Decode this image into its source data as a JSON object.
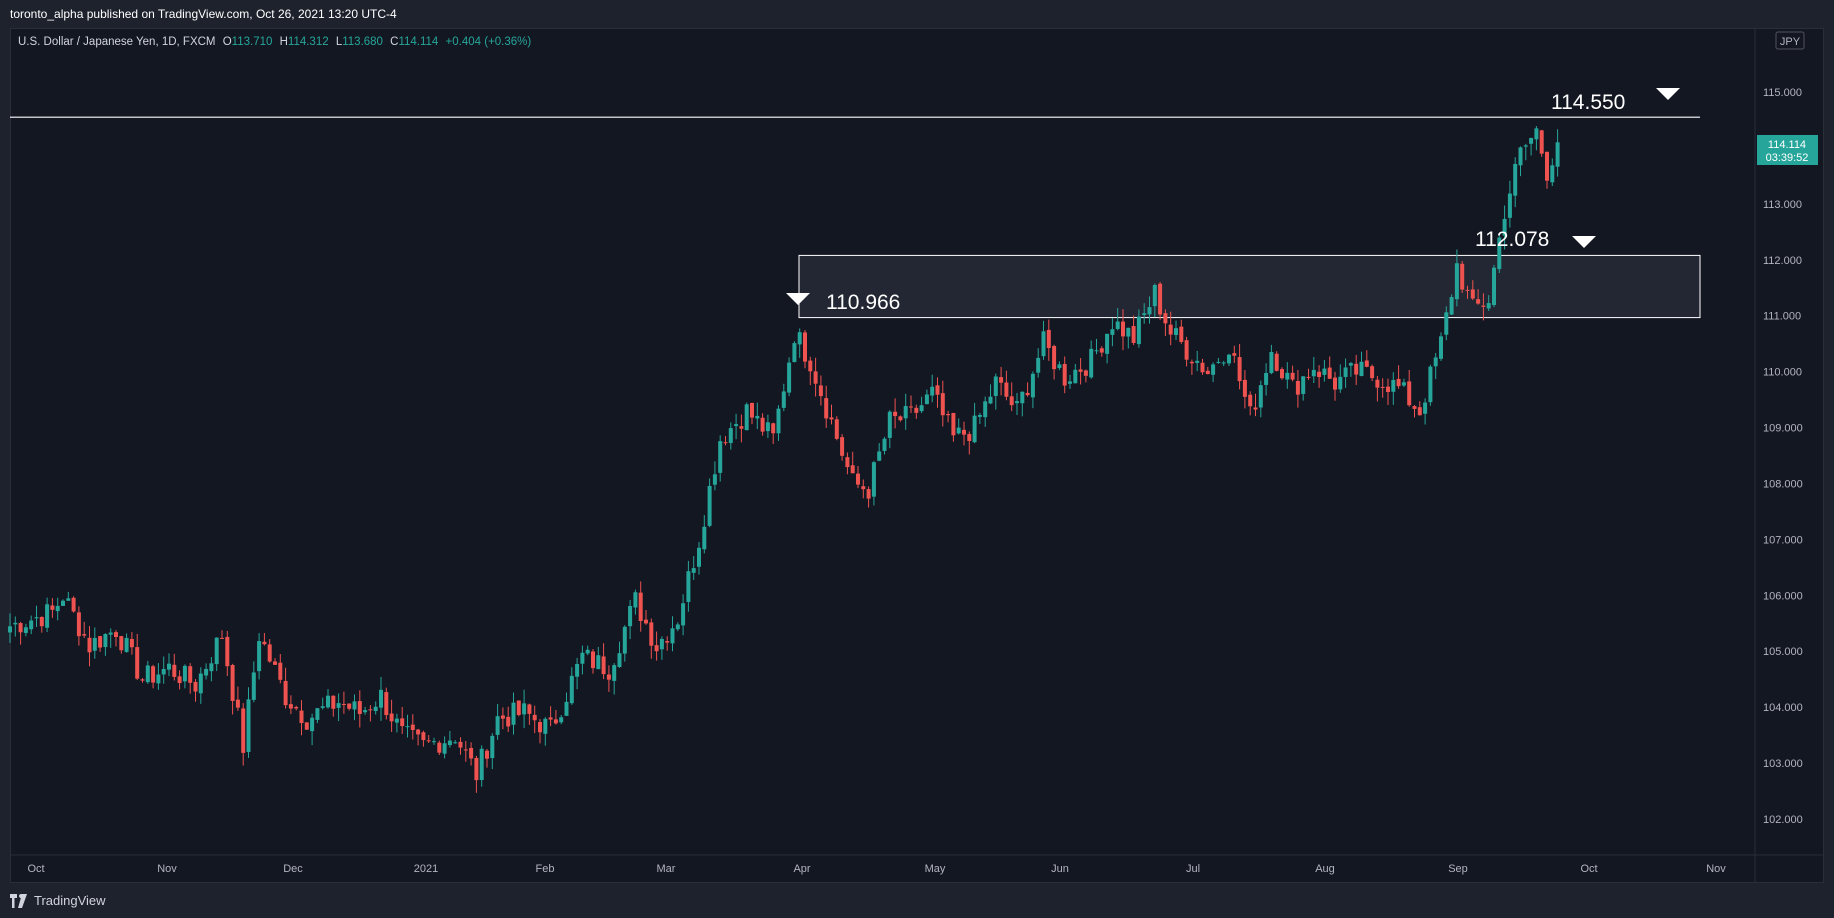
{
  "header": {
    "published_line": "toronto_alpha published on TradingView.com, Oct 26, 2021 13:20 UTC-4"
  },
  "legend": {
    "symbol": "U.S. Dollar / Japanese Yen, 1D, FXCM",
    "o_label": "O",
    "o_value": "113.710",
    "h_label": "H",
    "h_value": "114.312",
    "l_label": "L",
    "l_value": "113.680",
    "c_label": "C",
    "c_value": "114.114",
    "change": "+0.404 (+0.36%)"
  },
  "currency_badge": "JPY",
  "last_price": {
    "value": "114.114",
    "countdown": "03:39:52"
  },
  "footer": {
    "brand": "TradingView"
  },
  "colors": {
    "up": "#26a69a",
    "down": "#ef5350",
    "background": "#131722",
    "grid": "#2a2e39",
    "accent": "#26a69a"
  },
  "chart_data": {
    "type": "candlestick",
    "ylim": [
      101.5,
      115.6
    ],
    "y_ticks": [
      102,
      103,
      104,
      105,
      106,
      107,
      108,
      109,
      110,
      111,
      112,
      113,
      114,
      115
    ],
    "x_labels": [
      "Oct",
      "Nov",
      "Dec",
      "2021",
      "Feb",
      "Mar",
      "Apr",
      "May",
      "Jun",
      "Jul",
      "Aug",
      "Sep",
      "Oct",
      "Nov"
    ],
    "annotations": {
      "level_114": "114.550",
      "level_112": "112.078",
      "level_110": "110.966"
    },
    "zone": {
      "low": 110.966,
      "high": 112.078
    },
    "resistance_line": 114.55,
    "close_path": [
      [
        0,
        105.45
      ],
      [
        8,
        105.7
      ],
      [
        10,
        106.0
      ],
      [
        15,
        105.1
      ],
      [
        20,
        105.4
      ],
      [
        25,
        104.5
      ],
      [
        30,
        104.7
      ],
      [
        35,
        104.4
      ],
      [
        40,
        105.3
      ],
      [
        44,
        103.3
      ],
      [
        47,
        105.3
      ],
      [
        52,
        104.2
      ],
      [
        56,
        103.8
      ],
      [
        62,
        104.1
      ],
      [
        66,
        103.9
      ],
      [
        70,
        104.2
      ],
      [
        74,
        103.5
      ],
      [
        78,
        103.3
      ],
      [
        84,
        103.5
      ],
      [
        88,
        102.8
      ],
      [
        92,
        103.8
      ],
      [
        97,
        103.9
      ],
      [
        102,
        103.6
      ],
      [
        108,
        104.9
      ],
      [
        113,
        104.7
      ],
      [
        118,
        105.9
      ],
      [
        122,
        105.1
      ],
      [
        126,
        105.6
      ],
      [
        130,
        107.0
      ],
      [
        134,
        108.8
      ],
      [
        139,
        109.3
      ],
      [
        144,
        108.8
      ],
      [
        148,
        110.7
      ],
      [
        151,
        110.2
      ],
      [
        155,
        109.1
      ],
      [
        159,
        108.0
      ],
      [
        162,
        107.9
      ],
      [
        166,
        109.1
      ],
      [
        170,
        109.2
      ],
      [
        174,
        109.6
      ],
      [
        178,
        108.8
      ],
      [
        182,
        109.0
      ],
      [
        186,
        109.8
      ],
      [
        190,
        109.3
      ],
      [
        195,
        110.5
      ],
      [
        199,
        109.9
      ],
      [
        204,
        110.2
      ],
      [
        208,
        110.9
      ],
      [
        212,
        110.6
      ],
      [
        216,
        111.4
      ],
      [
        219,
        110.7
      ],
      [
        223,
        110.3
      ],
      [
        226,
        110.0
      ],
      [
        230,
        110.5
      ],
      [
        234,
        109.2
      ],
      [
        238,
        110.4
      ],
      [
        242,
        109.7
      ],
      [
        246,
        110.1
      ],
      [
        250,
        109.8
      ],
      [
        254,
        110.0
      ],
      [
        258,
        109.9
      ],
      [
        262,
        109.7
      ],
      [
        266,
        109.3
      ],
      [
        270,
        110.5
      ],
      [
        273,
        111.9
      ],
      [
        276,
        111.1
      ],
      [
        279,
        111.3
      ],
      [
        282,
        112.9
      ],
      [
        285,
        113.9
      ],
      [
        288,
        114.3
      ],
      [
        290,
        113.6
      ],
      [
        292,
        114.1
      ]
    ]
  }
}
